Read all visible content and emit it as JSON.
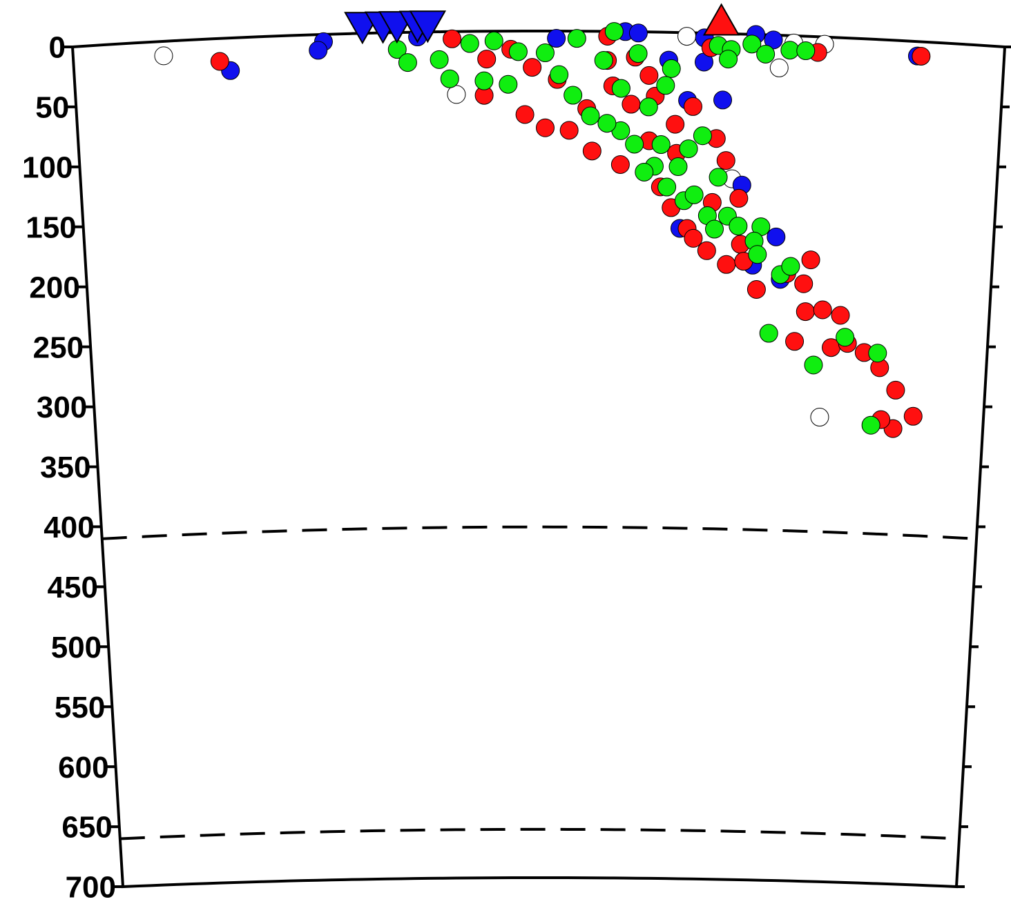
{
  "chart_data": {
    "type": "scatter",
    "xlim": [
      0,
      100
    ],
    "ylim": [
      0,
      700
    ],
    "yticks": [
      0,
      50,
      100,
      150,
      200,
      250,
      300,
      350,
      400,
      450,
      500,
      550,
      600,
      650,
      700
    ],
    "y_inverted": true,
    "grid": false,
    "reference_lines": [
      410,
      660
    ],
    "symbols": [
      {
        "shape": "inverted-triangle",
        "color": "#1010ee",
        "x": [
          31.1,
          33.3,
          34.8,
          37,
          38.1
        ]
      },
      {
        "shape": "triangle",
        "color": "#ff1010",
        "x": [
          69.6
        ]
      }
    ],
    "series": [
      {
        "color": "#ffffff",
        "x": [
          9.7,
          41.1,
          65.9,
          75.9,
          77.4,
          80.7,
          81.6,
          71.1
        ],
        "values": [
          12,
          52,
          3,
          27,
          6,
          6,
          315,
          120
        ]
      },
      {
        "color": "#1010ee",
        "x": [
          16.8,
          26.9,
          26.3,
          37,
          51.9,
          59.3,
          60.7,
          64,
          66.1,
          67.8,
          69.9,
          72.2,
          76.1,
          76.7,
          73.6,
          73.3,
          75.2,
          90.7,
          67.8,
          65.5
        ],
        "values": [
          27,
          6,
          13,
          4,
          6,
          0,
          1,
          23,
          56,
          24,
          55,
          125,
          167,
          202,
          191,
          0,
          4,
          12,
          4,
          162
        ]
      },
      {
        "color": "#ff1010",
        "x": [
          15.7,
          40.7,
          44.4,
          48.5,
          50.7,
          53.3,
          55.8,
          57.4,
          60.4,
          62.6,
          66.7,
          69.3,
          70.4,
          71.9,
          72.2,
          70.7,
          72.6,
          74.1,
          77.4,
          80,
          79.3,
          79.6,
          81.5,
          83.5,
          78.5,
          82.6,
          84.4,
          86.3,
          88.1,
          90,
          92.1,
          89.9,
          88.5,
          91.1,
          80,
          68.5,
          64.8,
          63.3,
          66.3,
          68.5,
          58.9,
          61.9,
          55.2,
          49.3,
          44.1,
          57.4,
          62,
          64.5,
          67,
          69,
          60,
          58,
          65,
          52,
          47
        ],
        "values": [
          19,
          6,
          23,
          69,
          80,
          82,
          99,
          4,
          21,
          53,
          61,
          87,
          105,
          136,
          174,
          191,
          188,
          211,
          197,
          185,
          205,
          228,
          226,
          230,
          253,
          257,
          253,
          260,
          272,
          290,
          311,
          322,
          315,
          12,
          13,
          12,
          76,
          128,
          162,
          180,
          110,
          36,
          64,
          30,
          53,
          24,
          90,
          145,
          170,
          140,
          60,
          45,
          100,
          40,
          15
        ]
      },
      {
        "color": "#10ee10",
        "x": [
          34.8,
          35.9,
          39.3,
          40.4,
          42.6,
          45.2,
          44.1,
          47.8,
          46.7,
          50.7,
          52.2,
          54.1,
          53.7,
          55.6,
          58.1,
          57,
          58.9,
          60.7,
          61.9,
          64.3,
          63.7,
          60.4,
          62.6,
          64,
          65.9,
          67.8,
          68.5,
          69.6,
          70.7,
          71.9,
          74.4,
          73.7,
          74.1,
          76.7,
          77.8,
          75.6,
          80.7,
          84.1,
          87.8,
          87.4,
          69.3,
          70.7,
          72.9,
          74.4,
          77,
          78.7,
          70.4,
          58.9,
          57.4,
          65.2,
          67,
          69.3,
          61.5,
          63.3,
          66.3
        ],
        "values": [
          14,
          25,
          23,
          39,
          10,
          8,
          41,
          17,
          44,
          18,
          36,
          6,
          53,
          70,
          0,
          24,
          47,
          18,
          62,
          30,
          44,
          93,
          111,
          128,
          139,
          85,
          151,
          119,
          151,
          159,
          159,
          171,
          182,
          198,
          191,
          247,
          272,
          248,
          260,
          320,
          10,
          13,
          8,
          16,
          12,
          12,
          21,
          82,
          76,
          111,
          134,
          162,
          116,
          93,
          96
        ]
      }
    ]
  }
}
